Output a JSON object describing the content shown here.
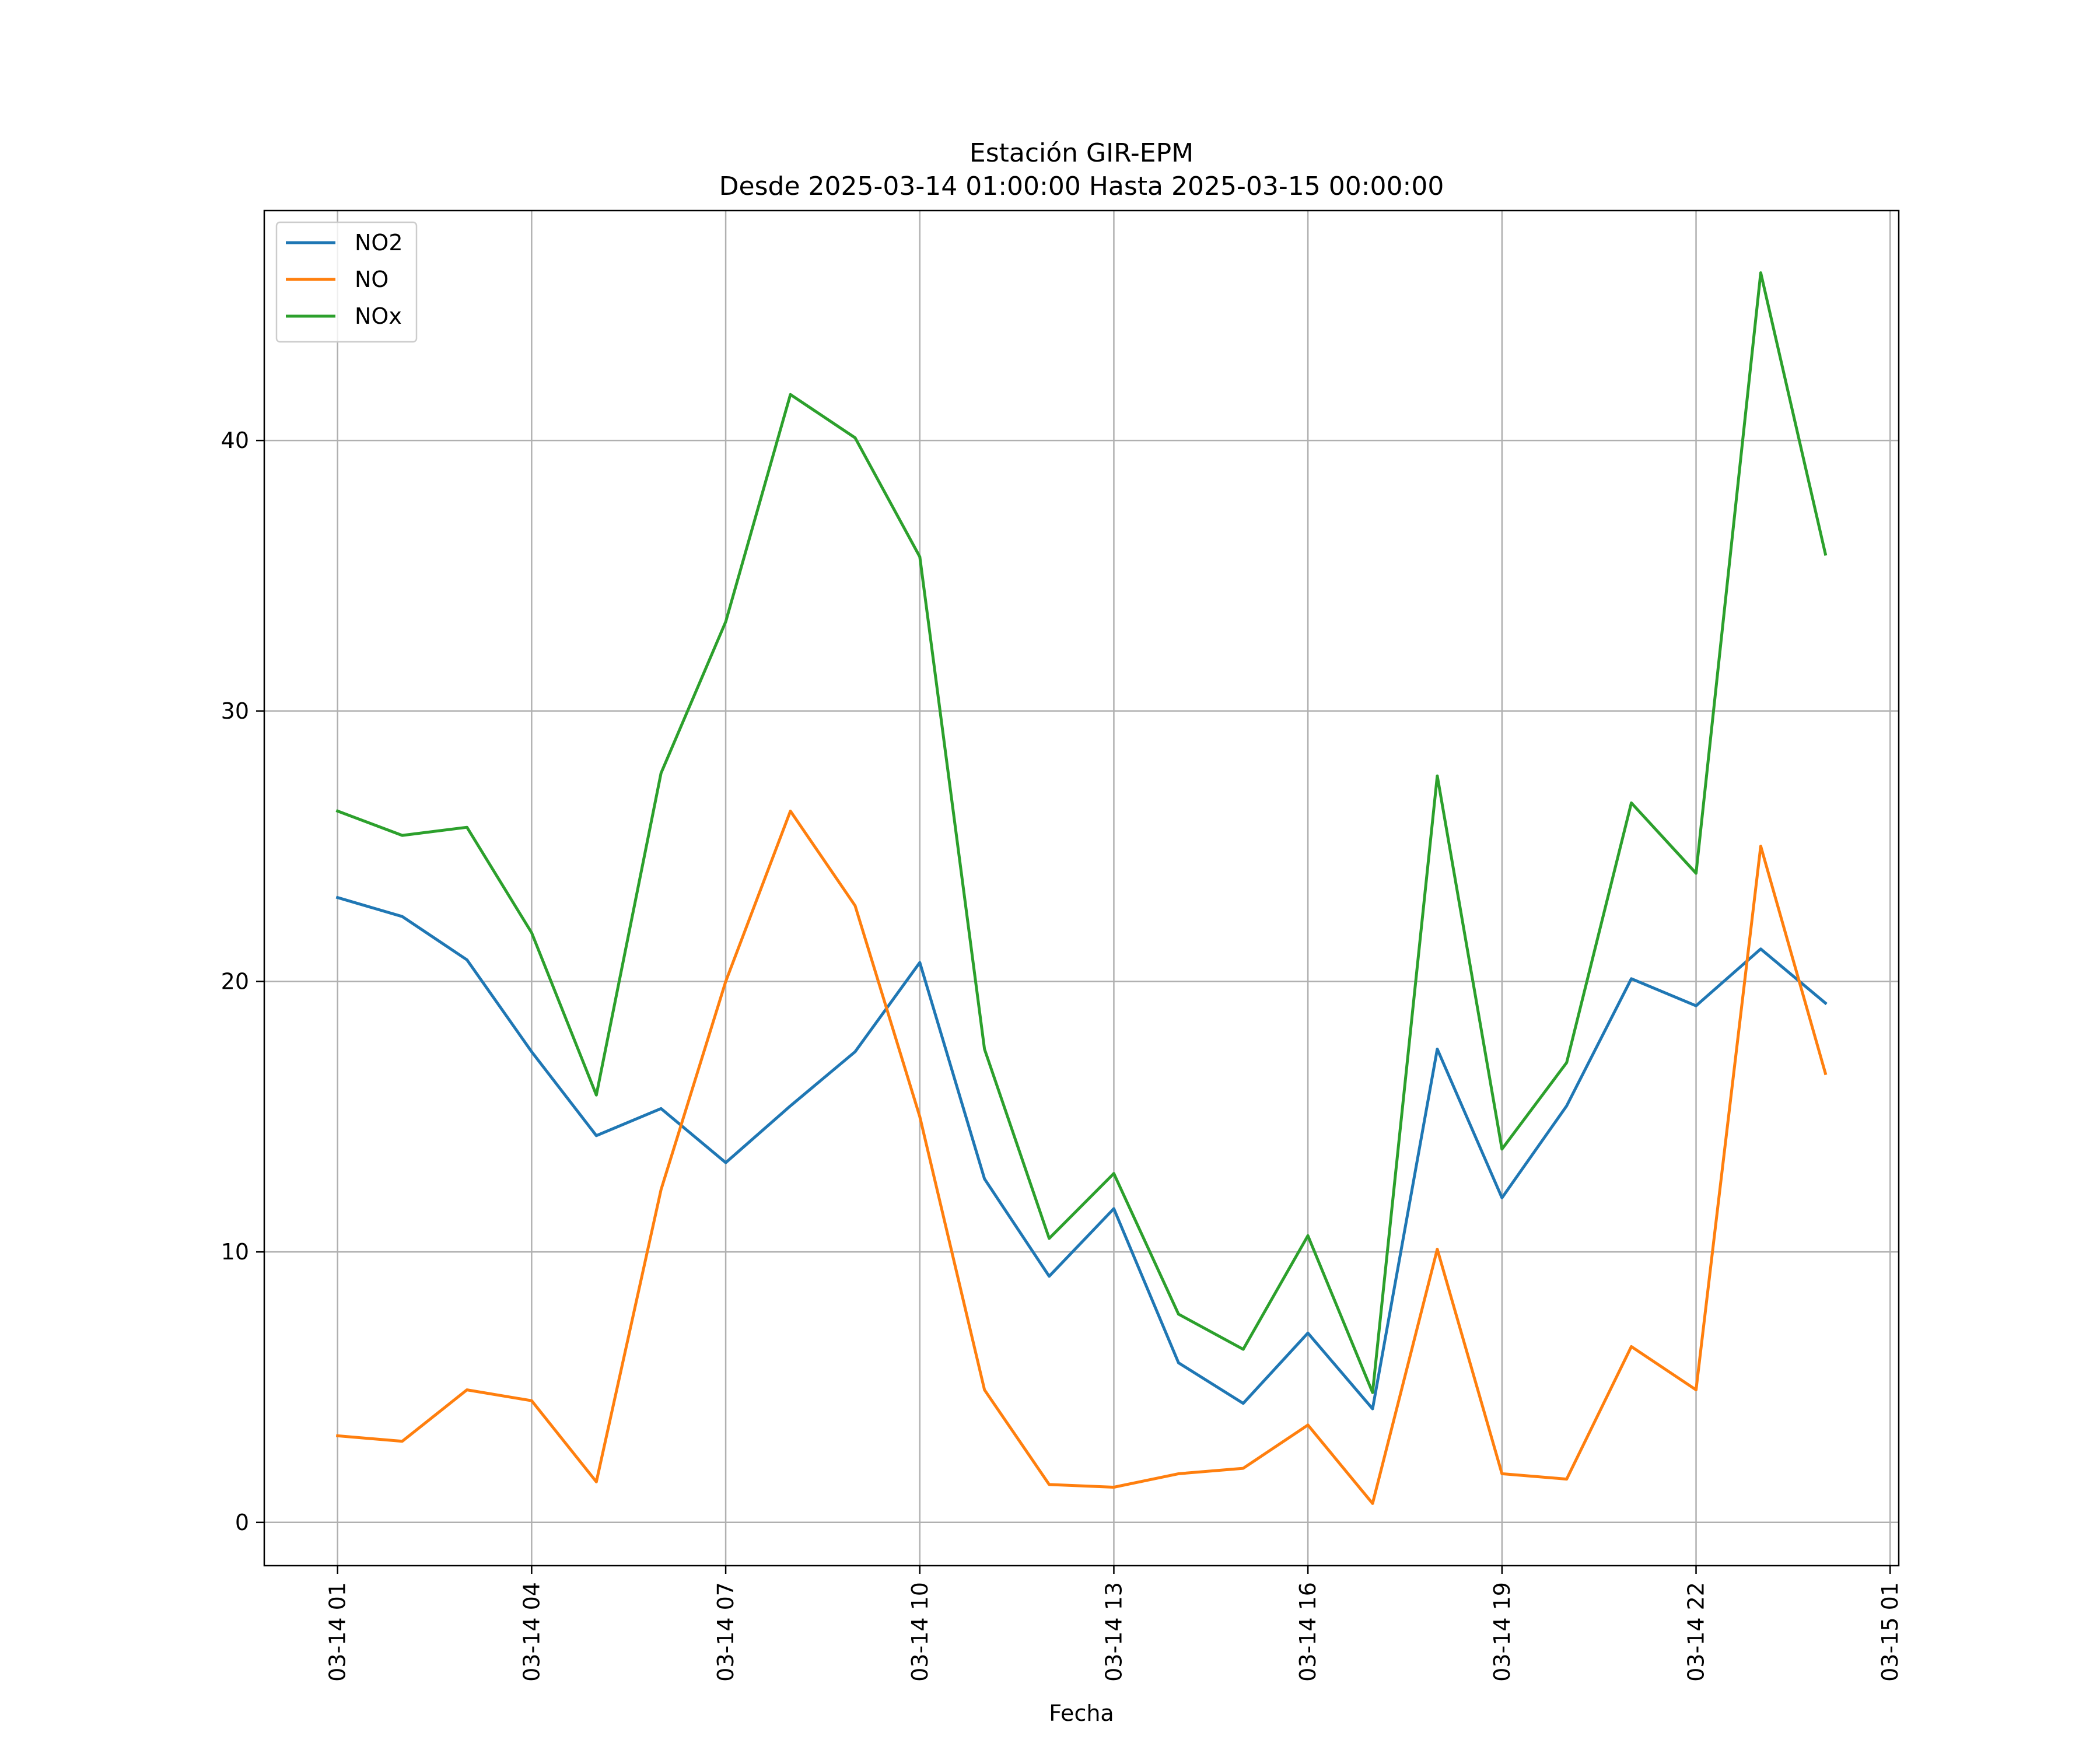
{
  "chart_data": {
    "type": "line",
    "title": "Estación GIR-EPM",
    "subtitle": "Desde 2025-03-14 01:00:00 Hasta 2025-03-15 00:00:00",
    "xlabel": "Fecha",
    "ylabel": "",
    "x": [
      "2025-03-14 01:00",
      "2025-03-14 02:00",
      "2025-03-14 03:00",
      "2025-03-14 04:00",
      "2025-03-14 05:00",
      "2025-03-14 06:00",
      "2025-03-14 07:00",
      "2025-03-14 08:00",
      "2025-03-14 09:00",
      "2025-03-14 10:00",
      "2025-03-14 11:00",
      "2025-03-14 12:00",
      "2025-03-14 13:00",
      "2025-03-14 14:00",
      "2025-03-14 15:00",
      "2025-03-14 16:00",
      "2025-03-14 17:00",
      "2025-03-14 18:00",
      "2025-03-14 19:00",
      "2025-03-14 20:00",
      "2025-03-14 21:00",
      "2025-03-14 22:00",
      "2025-03-14 23:00",
      "2025-03-15 00:00"
    ],
    "x_ticks": [
      "2025-03-14 01:00",
      "2025-03-14 04:00",
      "2025-03-14 07:00",
      "2025-03-14 10:00",
      "2025-03-14 13:00",
      "2025-03-14 16:00",
      "2025-03-14 19:00",
      "2025-03-14 22:00",
      "2025-03-15 01:00"
    ],
    "x_tick_labels": [
      "03-14 01",
      "03-14 04",
      "03-14 07",
      "03-14 10",
      "03-14 13",
      "03-14 16",
      "03-14 19",
      "03-14 22",
      "03-15 01"
    ],
    "xlim": [
      "2025-03-13 23:52",
      "2025-03-15 01:08"
    ],
    "y_ticks": [
      0,
      10,
      20,
      30,
      40
    ],
    "ylim": [
      -1.6,
      48.5
    ],
    "grid": true,
    "legend": "upper left",
    "series": [
      {
        "name": "NO2",
        "color": "#1f77b4",
        "values": [
          23.1,
          22.4,
          20.8,
          17.4,
          14.3,
          15.3,
          13.3,
          15.4,
          17.4,
          20.7,
          12.7,
          9.1,
          11.6,
          5.9,
          4.4,
          7.0,
          4.2,
          17.5,
          12.0,
          15.4,
          20.1,
          19.1,
          21.2,
          19.2
        ]
      },
      {
        "name": "NO",
        "color": "#ff7f0e",
        "values": [
          3.2,
          3.0,
          4.9,
          4.5,
          1.5,
          12.3,
          20.0,
          26.3,
          22.8,
          15.0,
          4.9,
          1.4,
          1.3,
          1.8,
          2.0,
          3.6,
          0.7,
          10.1,
          1.8,
          1.6,
          6.5,
          4.9,
          25.0,
          16.6
        ]
      },
      {
        "name": "NOx",
        "color": "#2ca02c",
        "values": [
          26.3,
          25.4,
          25.7,
          21.8,
          15.8,
          27.7,
          33.3,
          41.7,
          40.1,
          35.7,
          17.5,
          10.5,
          12.9,
          7.7,
          6.4,
          10.6,
          4.8,
          27.6,
          13.8,
          17.0,
          26.6,
          24.0,
          46.2,
          35.8
        ]
      }
    ]
  }
}
